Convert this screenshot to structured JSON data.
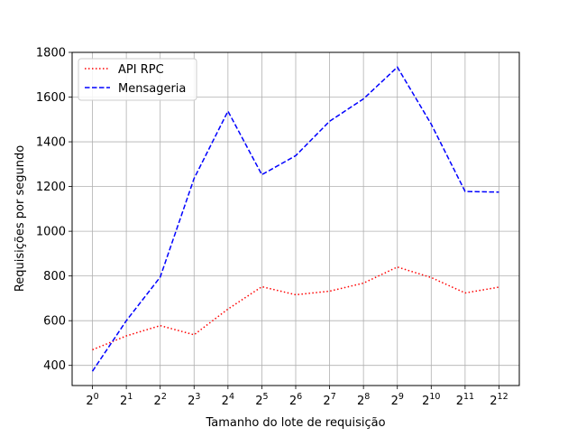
{
  "chart_data": {
    "type": "line",
    "title": "",
    "xlabel": "Tamanho do lote de requisição",
    "ylabel": "Requisições por segundo",
    "x_tick_base": "2",
    "x": [
      0,
      1,
      2,
      3,
      4,
      5,
      6,
      7,
      8,
      9,
      10,
      11,
      12
    ],
    "x_tick_exponents": [
      "0",
      "1",
      "2",
      "3",
      "4",
      "5",
      "6",
      "7",
      "8",
      "9",
      "10",
      "11",
      "12"
    ],
    "xlim": [
      -0.6,
      12.6
    ],
    "ylim": [
      310,
      1800
    ],
    "y_ticks": [
      400,
      600,
      800,
      1000,
      1200,
      1400,
      1600,
      1800
    ],
    "y_tick_labels": [
      "400",
      "600",
      "800",
      "1000",
      "1200",
      "1400",
      "1600",
      "1800"
    ],
    "grid": true,
    "legend_position": "top-left",
    "series": [
      {
        "name": "API RPC",
        "color": "#ff0000",
        "style": "dotted",
        "values": [
          470,
          532,
          578,
          537,
          652,
          752,
          716,
          732,
          768,
          840,
          793,
          724,
          750
        ]
      },
      {
        "name": "Mensageria",
        "color": "#0000ff",
        "style": "dashed",
        "values": [
          374,
          600,
          795,
          1236,
          1537,
          1253,
          1338,
          1492,
          1592,
          1734,
          1479,
          1178,
          1175
        ]
      }
    ]
  }
}
